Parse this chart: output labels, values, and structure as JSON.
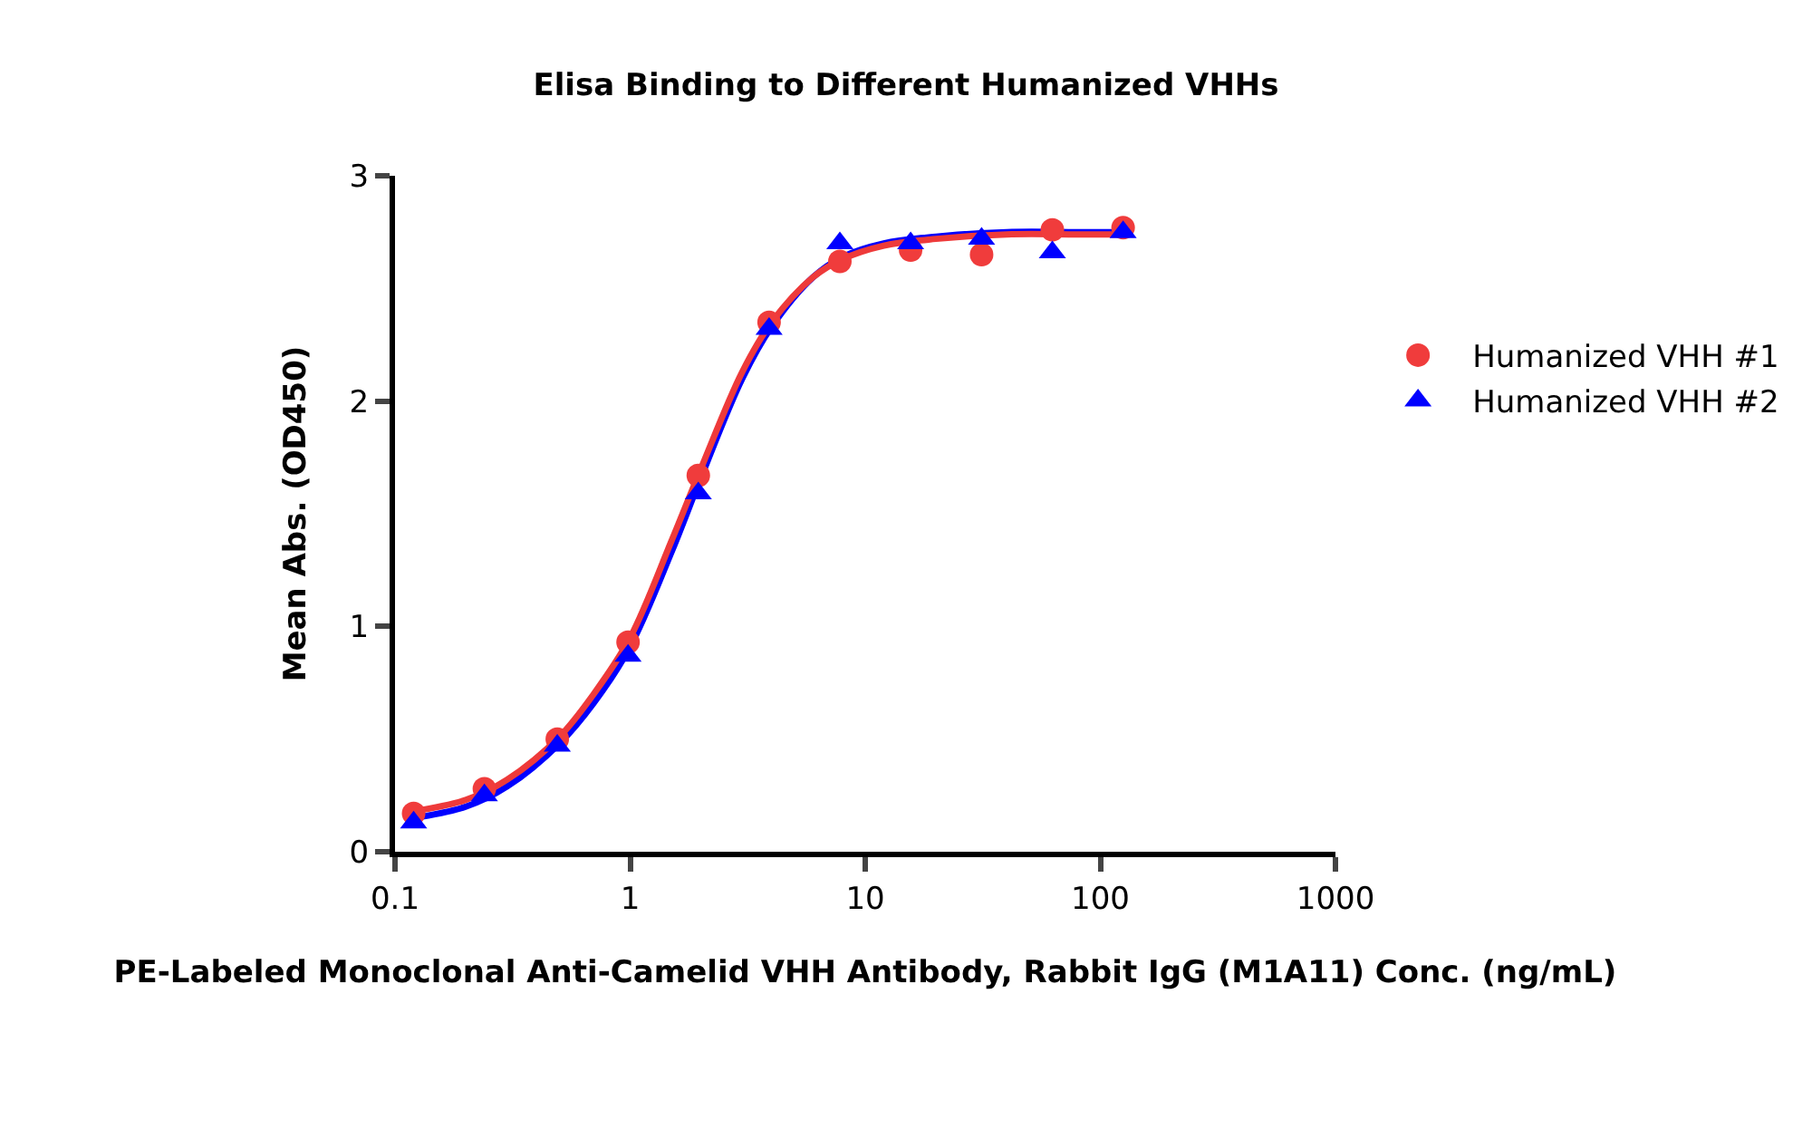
{
  "chart_data": {
    "type": "scatter",
    "title": "Elisa Binding to Different Humanized VHHs",
    "xlabel": "PE-Labeled Monoclonal Anti-Camelid VHH Antibody, Rabbit IgG (M1A11) Conc. (ng/mL)",
    "ylabel": "Mean Abs. (OD450)",
    "x": [
      0.12,
      0.24,
      0.49,
      0.98,
      1.95,
      3.9,
      7.8,
      15.6,
      31.25,
      62.5,
      125
    ],
    "series": [
      {
        "type": "line",
        "color": "#0000ff",
        "x": [
          0.12,
          0.2,
          0.3,
          0.5,
          0.7,
          1,
          1.5,
          2,
          3,
          4,
          6,
          8,
          12,
          20,
          40,
          80,
          125
        ],
        "values": [
          0.15,
          0.2,
          0.29,
          0.48,
          0.66,
          0.91,
          1.33,
          1.66,
          2.1,
          2.33,
          2.55,
          2.64,
          2.7,
          2.73,
          2.75,
          2.75,
          2.75
        ],
        "marker": "none"
      },
      {
        "type": "line",
        "color": "#ee3a3a",
        "x": [
          0.12,
          0.2,
          0.3,
          0.5,
          0.7,
          1,
          1.5,
          2,
          3,
          4,
          6,
          8,
          12,
          20,
          40,
          80,
          125
        ],
        "values": [
          0.18,
          0.23,
          0.32,
          0.51,
          0.7,
          0.95,
          1.38,
          1.7,
          2.13,
          2.35,
          2.55,
          2.63,
          2.69,
          2.72,
          2.74,
          2.74,
          2.74
        ],
        "marker": "none"
      },
      {
        "name": "Humanized VHH #1",
        "color": "#f03c3c",
        "marker": "circle",
        "values": [
          0.17,
          0.28,
          0.5,
          0.93,
          1.67,
          2.35,
          2.62,
          2.67,
          2.65,
          2.76,
          2.77
        ]
      },
      {
        "name": "Humanized VHH #2",
        "color": "#0000ff",
        "marker": "triangle",
        "values": [
          0.13,
          0.25,
          0.47,
          0.87,
          1.59,
          2.32,
          2.7,
          2.7,
          2.72,
          2.66,
          2.75
        ]
      }
    ],
    "log": "x",
    "xlim": [
      0.1,
      1000
    ],
    "xticks": [
      0.1,
      1,
      10,
      100,
      1000
    ],
    "ylim": [
      0,
      3
    ],
    "yticks": [
      0,
      1,
      2,
      3
    ],
    "legend": "right"
  }
}
